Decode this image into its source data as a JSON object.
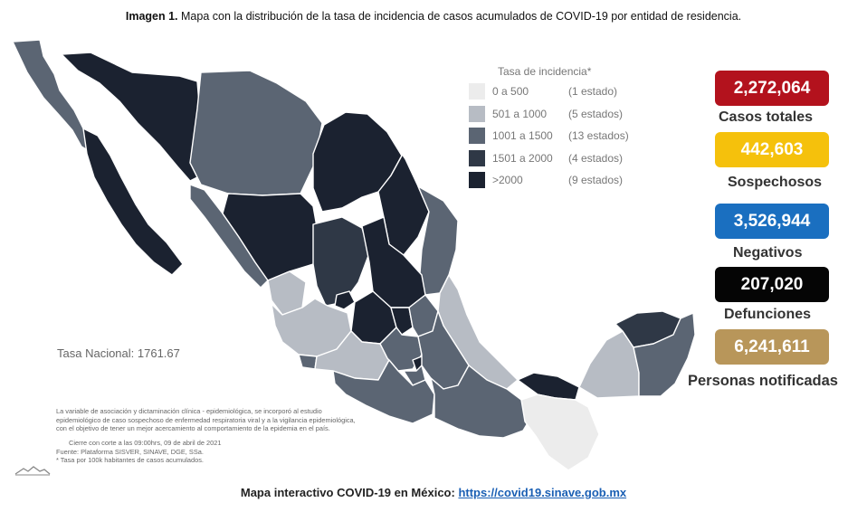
{
  "caption": {
    "prefix": "Imagen 1.",
    "text": " Mapa con la distribución de la tasa de incidencia de casos acumulados de COVID-19 por entidad de residencia."
  },
  "legend": {
    "title": "Tasa de incidencia*",
    "items": [
      {
        "range": "0 a    500",
        "count": "(1 estado)",
        "color": "#ececec"
      },
      {
        "range": "501 a  1000",
        "count": "(5 estados)",
        "color": "#b7bcc4"
      },
      {
        "range": "1001 a  1500",
        "count": "(13 estados)",
        "color": "#5b6573"
      },
      {
        "range": "1501 a  2000",
        "count": "(4 estados)",
        "color": "#2f3846"
      },
      {
        "range": ">2000",
        "count": "(9 estados)",
        "color": "#1b2230"
      }
    ]
  },
  "national_rate": "Tasa Nacional: 1761.67",
  "notes": [
    "La variable de asociación y dictaminación clínica - epidemiológica, se incorporó al estudio",
    "epidemiológico de caso sospechoso de enfermedad respiratoria viral y a la vigilancia epidemiológica,",
    "con el objetivo de tener un mejor acercamiento al comportamiento de la epidemia en el país.",
    "Cierre con corte a las 09:00hrs, 09 de abril de 2021",
    "Fuente: Plataforma SISVER, SINAVE, DGE, SSa.",
    "* Tasa por 100k habitantes de casos acumulados."
  ],
  "stats": [
    {
      "value": "2,272,064",
      "label": "Casos totales",
      "color": "#b3121d"
    },
    {
      "value": "442,603",
      "label": "Sospechosos",
      "color": "#f5c10c"
    },
    {
      "value": "3,526,944",
      "label": "Negativos",
      "color": "#1a6fc0"
    },
    {
      "value": "207,020",
      "label": "Defunciones",
      "color": "#050505"
    },
    {
      "value": "6,241,611",
      "label": "Personas notificadas",
      "color": "#b8965a"
    }
  ],
  "footer": {
    "text": "Mapa interactivo COVID-19 en México: ",
    "link": "https://covid19.sinave.gob.mx"
  }
}
